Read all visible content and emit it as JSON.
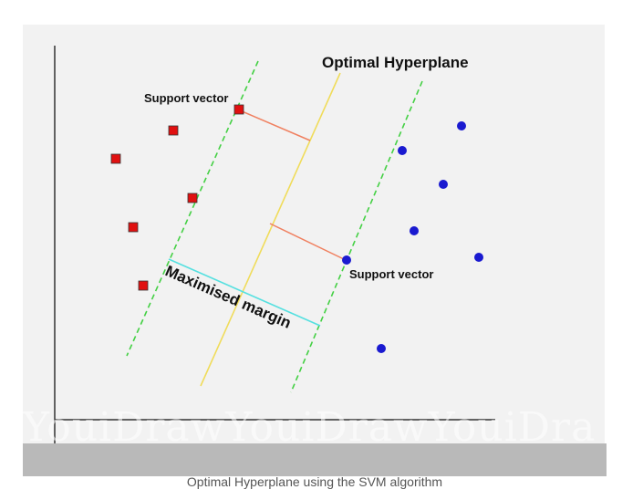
{
  "diagram": {
    "title": "Optimal Hyperplane",
    "support_vector_label_top": "Support vector",
    "support_vector_label_bottom": "Support vector",
    "margin_label": "Maximised margin",
    "class_a_marker": "red-square",
    "class_b_marker": "blue-circle",
    "colors": {
      "class_a": "#e01010",
      "class_b": "#1a1ad0",
      "hyperplane": "#f0dc5a",
      "margin_boundary": "#44d044",
      "margin_indicator": "#55e0e0",
      "support_distance": "#f08060",
      "axes": "#333333"
    }
  },
  "watermark": "YouiDrawYouiDrawYouiDra",
  "caption": "Optimal Hyperplane using the SVM algorithm"
}
